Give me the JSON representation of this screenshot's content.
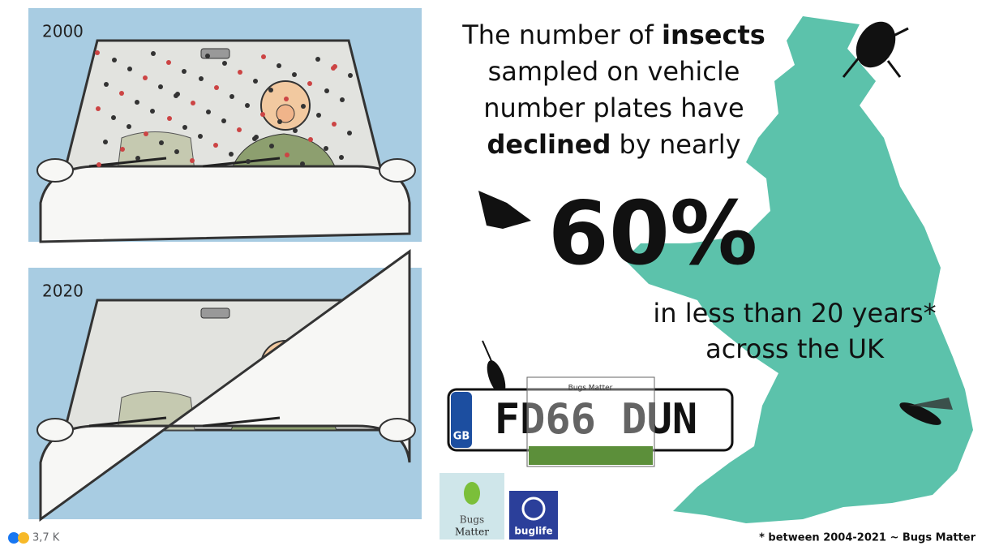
{
  "panels": [
    {
      "label": "2000"
    },
    {
      "label": "2020"
    }
  ],
  "headline": [
    [
      {
        "text": "The number of "
      },
      {
        "text": "insects",
        "bold": true
      }
    ],
    [
      {
        "text": "sampled on vehicle"
      }
    ],
    [
      {
        "text": "number plates have"
      }
    ],
    [
      {
        "text": "declined",
        "bold": true
      },
      {
        "text": " by nearly"
      }
    ]
  ],
  "big_figure": "60%",
  "subline": [
    "in less than 20 years*",
    "across the UK"
  ],
  "plate": {
    "country": "GB",
    "text": "FD66 DUN",
    "badge": "Bugs Matter"
  },
  "logos": {
    "bugs_matter_1": "Bugs",
    "bugs_matter_2": "Matter",
    "buglife": "buglife"
  },
  "footnote": "* between 2004-2021 ~ Bugs Matter",
  "reactions": "3,7 K"
}
